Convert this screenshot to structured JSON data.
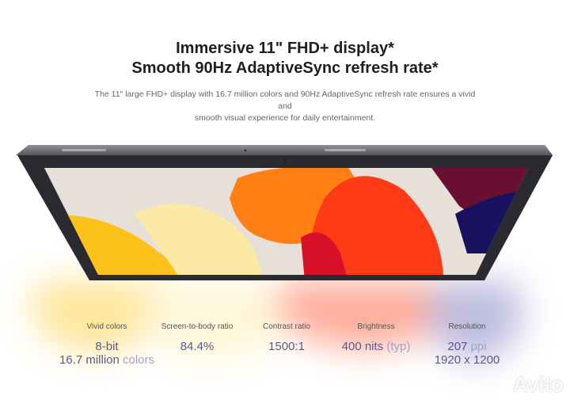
{
  "header": {
    "title_line1": "Immersive 11\" FHD+ display*",
    "title_line2": "Smooth 90Hz AdaptiveSync refresh rate*",
    "description_line1": "The 11\" large FHD+ display with 16.7 million colors and 90Hz AdaptiveSync refresh rate ensures a vivid and",
    "description_line2": "smooth visual experience for daily entertainment."
  },
  "specs": [
    {
      "label": "Vivid colors",
      "value": "8-bit",
      "value2_main": "16.7 million",
      "value2_light": " colors"
    },
    {
      "label": "Screen-to-body ratio",
      "value": "84.4%"
    },
    {
      "label": "Contrast ratio",
      "value": "1500:1"
    },
    {
      "label": "Brightness",
      "value_main": "400 nits",
      "value_light": " (typ)"
    },
    {
      "label": "Resolution",
      "value_main": "207",
      "value_light": " ppi",
      "value2": "1920 x 1200"
    }
  ],
  "watermark": "Avito",
  "colors": {
    "value_text": "#5b5a86",
    "value_light": "#a3a2c6",
    "frame": "#2a2b30"
  }
}
